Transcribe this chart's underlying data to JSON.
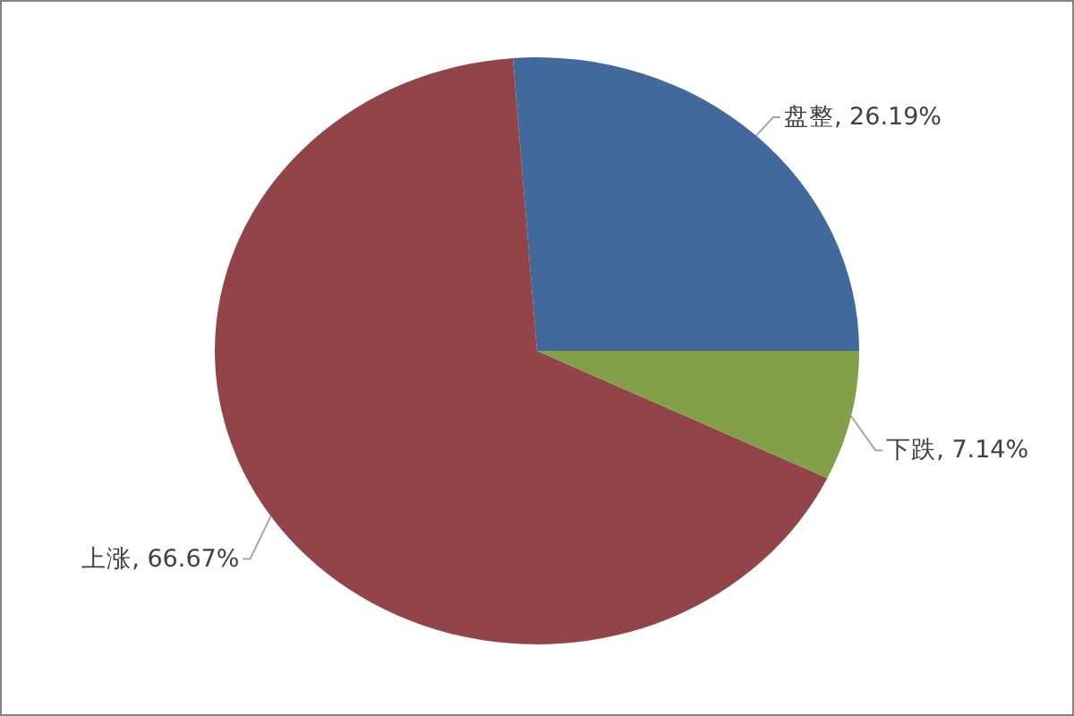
{
  "chart_data": {
    "type": "pie",
    "categories": [
      "盘整",
      "上涨",
      "下跌"
    ],
    "values": [
      26.19,
      66.67,
      7.14
    ],
    "colors": [
      "#41699c",
      "#924448",
      "#82a048"
    ],
    "value_labels": [
      "26.19%",
      "66.67%",
      "7.14%"
    ]
  }
}
